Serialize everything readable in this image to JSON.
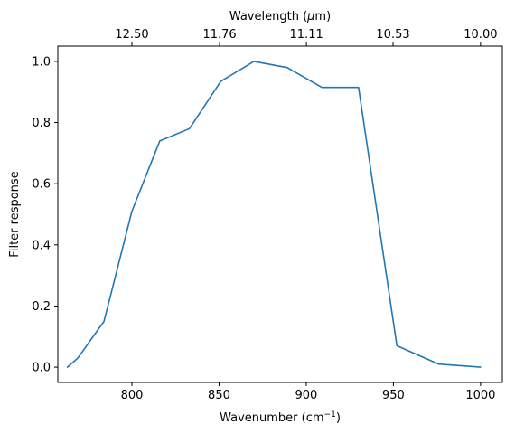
{
  "chart_data": {
    "type": "line",
    "xlabel": "Wavenumber (cm",
    "xlabel_sup": "−1",
    "xlabel_end": ")",
    "ylabel": "Filter response",
    "top_xlabel_pre": "Wavelength (",
    "top_xlabel_mu": "μ",
    "top_xlabel_post": "m)",
    "xlim": [
      757.5,
      1012.5
    ],
    "ylim": [
      -0.05,
      1.05
    ],
    "x_ticks": [
      800,
      850,
      900,
      950,
      1000
    ],
    "x_tick_labels": [
      "800",
      "850",
      "900",
      "950",
      "1000"
    ],
    "y_ticks": [
      0.0,
      0.2,
      0.4,
      0.6,
      0.8,
      1.0
    ],
    "y_tick_labels": [
      "0.0",
      "0.2",
      "0.4",
      "0.6",
      "0.8",
      "1.0"
    ],
    "top_ticks_wavenumber": [
      800,
      850.3,
      900.1,
      949.8,
      1000
    ],
    "top_tick_labels": [
      "12.50",
      "11.76",
      "11.11",
      "10.53",
      "10.00"
    ],
    "line_color": "#1f77b4",
    "series": [
      {
        "x": [
          763,
          769,
          784,
          800,
          816,
          833,
          851,
          870,
          889,
          909,
          930,
          952,
          976,
          1000
        ],
        "y": [
          0.0,
          0.03,
          0.15,
          0.51,
          0.74,
          0.78,
          0.935,
          1.0,
          0.98,
          0.915,
          0.915,
          0.07,
          0.01,
          0.0
        ]
      }
    ]
  }
}
